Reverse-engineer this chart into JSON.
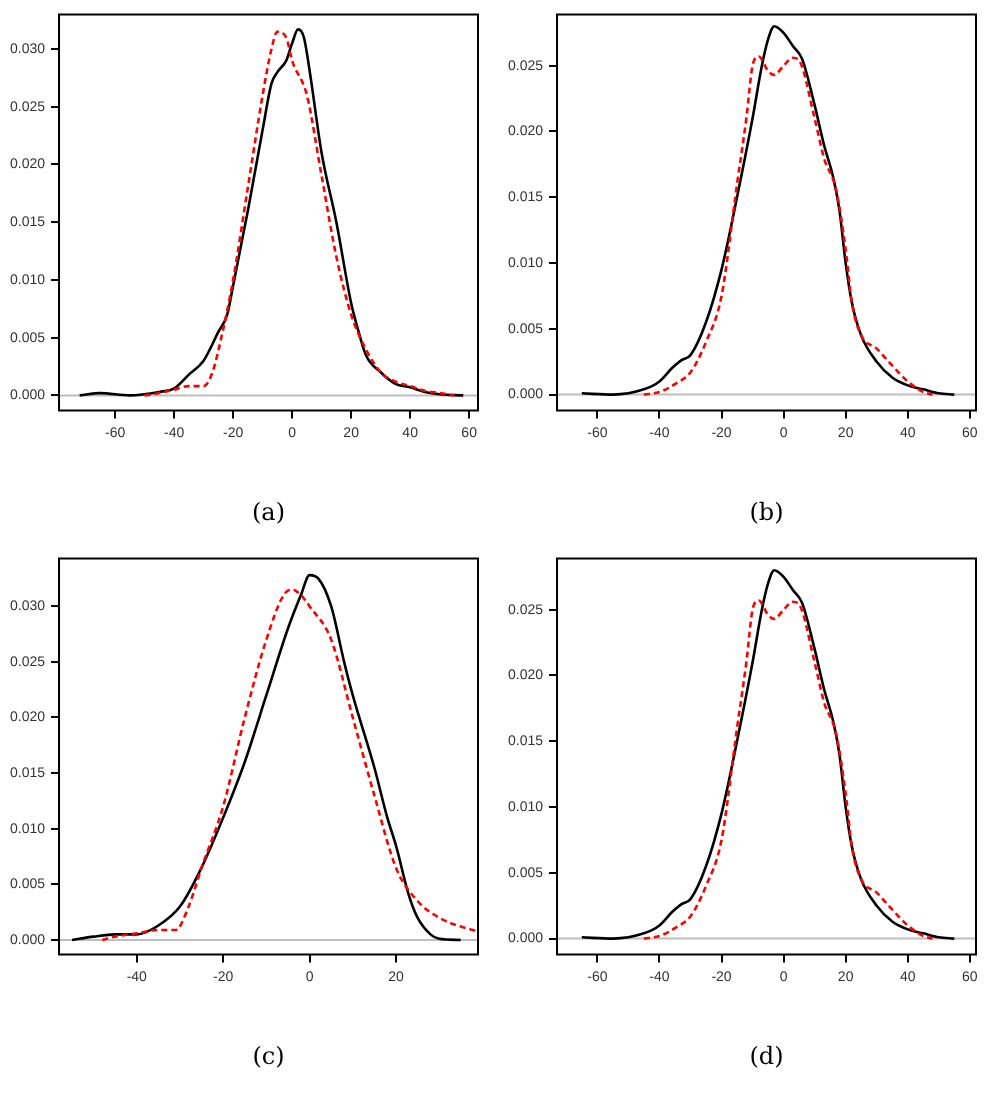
{
  "chart_data": [
    {
      "type": "line",
      "xlabel": "(a)",
      "xlim": [
        -79,
        63
      ],
      "xticks": [
        -60,
        -40,
        -20,
        0,
        20,
        40,
        60
      ],
      "ylim": [
        -0.0013,
        0.033
      ],
      "yticks": [
        {
          "value": 0,
          "label": "0.000"
        },
        {
          "value": 0.005,
          "label": "0.005"
        },
        {
          "value": 0.01,
          "label": "0.010"
        },
        {
          "value": 0.015,
          "label": "0.015"
        },
        {
          "value": 0.02,
          "label": "0.020"
        },
        {
          "value": 0.025,
          "label": "0.025"
        },
        {
          "value": 0.03,
          "label": "0.030"
        }
      ],
      "grid": false,
      "legend": false,
      "marker": "none",
      "ref_lines": [
        {
          "axis": "y",
          "value": 0,
          "color": "#bebebe"
        }
      ],
      "series": [
        {
          "color": "#000000",
          "line_style": "solid",
          "x": [
            -72,
            -65,
            -55,
            -45,
            -40,
            -35,
            -30,
            -25,
            -22,
            -20,
            -15,
            -10,
            -7,
            -5,
            -2,
            0,
            2,
            4,
            6,
            10,
            15,
            20,
            22,
            25,
            30,
            35,
            40,
            45,
            50,
            58
          ],
          "values": [
            0,
            0.0002,
            0,
            0.0003,
            0.0006,
            0.0018,
            0.003,
            0.0055,
            0.007,
            0.0095,
            0.016,
            0.023,
            0.027,
            0.028,
            0.029,
            0.0305,
            0.0317,
            0.031,
            0.028,
            0.021,
            0.015,
            0.008,
            0.006,
            0.0035,
            0.002,
            0.001,
            0.0007,
            0.0003,
            0.0001,
            0
          ]
        },
        {
          "color": "#ff0000",
          "line_style": "dashed",
          "x": [
            -50,
            -45,
            -40,
            -35,
            -30,
            -27,
            -24,
            -20,
            -15,
            -10,
            -7,
            -5,
            -2,
            0,
            5,
            10,
            15,
            20,
            25,
            30,
            35,
            40,
            45,
            50,
            55
          ],
          "values": [
            0,
            0.0002,
            0.0005,
            0.0008,
            0.0008,
            0.002,
            0.005,
            0.01,
            0.018,
            0.026,
            0.03,
            0.0315,
            0.031,
            0.029,
            0.026,
            0.019,
            0.012,
            0.007,
            0.004,
            0.002,
            0.0012,
            0.0008,
            0.0004,
            0.0002,
            0
          ]
        }
      ]
    },
    {
      "type": "line",
      "xlabel": "(b)",
      "xlim": [
        -73,
        62
      ],
      "xticks": [
        -60,
        -40,
        -20,
        0,
        20,
        40,
        60
      ],
      "ylim": [
        -0.0012,
        0.0289
      ],
      "yticks": [
        {
          "value": 0,
          "label": "0.000"
        },
        {
          "value": 0.005,
          "label": "0.005"
        },
        {
          "value": 0.01,
          "label": "0.010"
        },
        {
          "value": 0.015,
          "label": "0.015"
        },
        {
          "value": 0.02,
          "label": "0.020"
        },
        {
          "value": 0.025,
          "label": "0.025"
        }
      ],
      "grid": false,
      "legend": false,
      "marker": "none",
      "ref_lines": [
        {
          "axis": "y",
          "value": 0,
          "color": "#bebebe"
        }
      ],
      "series": [
        {
          "color": "#000000",
          "line_style": "solid",
          "x": [
            -65,
            -55,
            -45,
            -40,
            -36,
            -33,
            -30,
            -25,
            -20,
            -15,
            -10,
            -7,
            -5,
            -3,
            0,
            3,
            6,
            10,
            13,
            16,
            18,
            20,
            22,
            25,
            30,
            35,
            40,
            45,
            50,
            55
          ],
          "values": [
            0.0001,
            0,
            0.0004,
            0.001,
            0.002,
            0.0026,
            0.003,
            0.0055,
            0.0095,
            0.015,
            0.021,
            0.025,
            0.027,
            0.028,
            0.0275,
            0.0265,
            0.0255,
            0.022,
            0.019,
            0.0165,
            0.014,
            0.01,
            0.007,
            0.0045,
            0.0025,
            0.0013,
            0.0007,
            0.0004,
            0.0001,
            0
          ]
        },
        {
          "color": "#ff0000",
          "line_style": "dashed",
          "x": [
            -45,
            -40,
            -35,
            -30,
            -25,
            -20,
            -15,
            -12,
            -10,
            -8,
            -5,
            -3,
            0,
            3,
            5,
            10,
            13,
            17,
            20,
            22,
            25,
            30,
            35,
            40,
            45,
            48
          ],
          "values": [
            0,
            0.0002,
            0.0008,
            0.0017,
            0.004,
            0.0075,
            0.016,
            0.021,
            0.025,
            0.0257,
            0.0246,
            0.0243,
            0.025,
            0.0256,
            0.0254,
            0.021,
            0.018,
            0.0155,
            0.011,
            0.007,
            0.0045,
            0.0035,
            0.0022,
            0.001,
            0.0002,
            0
          ]
        }
      ]
    },
    {
      "type": "line",
      "xlabel": "(c)",
      "xlim": [
        -58,
        39
      ],
      "xticks": [
        -40,
        -20,
        0,
        20
      ],
      "ylim": [
        -0.0013,
        0.0343
      ],
      "yticks": [
        {
          "value": 0,
          "label": "0.000"
        },
        {
          "value": 0.005,
          "label": "0.005"
        },
        {
          "value": 0.01,
          "label": "0.010"
        },
        {
          "value": 0.015,
          "label": "0.015"
        },
        {
          "value": 0.02,
          "label": "0.020"
        },
        {
          "value": 0.025,
          "label": "0.025"
        },
        {
          "value": 0.03,
          "label": "0.030"
        }
      ],
      "grid": false,
      "legend": false,
      "marker": "none",
      "ref_lines": [
        {
          "axis": "y",
          "value": 0,
          "color": "#bebebe"
        }
      ],
      "series": [
        {
          "color": "#000000",
          "line_style": "solid",
          "x": [
            -55,
            -50,
            -45,
            -40,
            -35,
            -30,
            -25,
            -20,
            -15,
            -10,
            -5,
            -2,
            0,
            2,
            5,
            8,
            10,
            15,
            18,
            20,
            23,
            25,
            28,
            30,
            35
          ],
          "values": [
            0,
            0.0003,
            0.0005,
            0.0005,
            0.0013,
            0.003,
            0.0065,
            0.011,
            0.016,
            0.022,
            0.028,
            0.031,
            0.0328,
            0.0325,
            0.03,
            0.025,
            0.022,
            0.0155,
            0.011,
            0.0085,
            0.004,
            0.002,
            0.0005,
            0.0001,
            0
          ]
        },
        {
          "color": "#ff0000",
          "line_style": "dashed",
          "x": [
            -48,
            -45,
            -40,
            -35,
            -31,
            -28,
            -25,
            -20,
            -15,
            -10,
            -6,
            -4,
            -2,
            0,
            5,
            10,
            15,
            20,
            25,
            30,
            35,
            38.8
          ],
          "values": [
            0,
            0.0003,
            0.0006,
            0.0009,
            0.0009,
            0.003,
            0.0065,
            0.012,
            0.02,
            0.027,
            0.031,
            0.0315,
            0.031,
            0.03,
            0.027,
            0.02,
            0.013,
            0.0065,
            0.0035,
            0.002,
            0.0012,
            0.0008
          ]
        }
      ]
    },
    {
      "type": "line",
      "xlabel": "(d)",
      "xlim": [
        -73,
        62
      ],
      "xticks": [
        -60,
        -40,
        -20,
        0,
        20,
        40,
        60
      ],
      "ylim": [
        -0.0012,
        0.0289
      ],
      "yticks": [
        {
          "value": 0,
          "label": "0.000"
        },
        {
          "value": 0.005,
          "label": "0.005"
        },
        {
          "value": 0.01,
          "label": "0.010"
        },
        {
          "value": 0.015,
          "label": "0.015"
        },
        {
          "value": 0.02,
          "label": "0.020"
        },
        {
          "value": 0.025,
          "label": "0.025"
        }
      ],
      "grid": false,
      "legend": false,
      "marker": "none",
      "ref_lines": [
        {
          "axis": "y",
          "value": 0,
          "color": "#bebebe"
        }
      ],
      "series": [
        {
          "color": "#000000",
          "line_style": "solid",
          "x": [
            -65,
            -55,
            -45,
            -40,
            -36,
            -33,
            -30,
            -25,
            -20,
            -15,
            -10,
            -7,
            -5,
            -3,
            0,
            3,
            6,
            10,
            13,
            16,
            18,
            20,
            22,
            25,
            30,
            35,
            40,
            45,
            50,
            55
          ],
          "values": [
            0.0001,
            0,
            0.0004,
            0.001,
            0.002,
            0.0026,
            0.003,
            0.0055,
            0.0095,
            0.015,
            0.021,
            0.025,
            0.027,
            0.028,
            0.0275,
            0.0265,
            0.0255,
            0.022,
            0.019,
            0.0165,
            0.014,
            0.01,
            0.007,
            0.0045,
            0.0025,
            0.0013,
            0.0007,
            0.0004,
            0.0001,
            0
          ]
        },
        {
          "color": "#ff0000",
          "line_style": "dashed",
          "x": [
            -45,
            -40,
            -35,
            -30,
            -25,
            -20,
            -15,
            -12,
            -10,
            -8,
            -5,
            -3,
            0,
            3,
            5,
            10,
            13,
            17,
            20,
            22,
            25,
            30,
            35,
            40,
            45,
            48
          ],
          "values": [
            0,
            0.0002,
            0.0008,
            0.0017,
            0.004,
            0.0075,
            0.016,
            0.021,
            0.025,
            0.0257,
            0.0246,
            0.0243,
            0.025,
            0.0256,
            0.0254,
            0.021,
            0.018,
            0.0155,
            0.011,
            0.007,
            0.0045,
            0.0035,
            0.0022,
            0.001,
            0.0002,
            0
          ]
        }
      ]
    }
  ]
}
